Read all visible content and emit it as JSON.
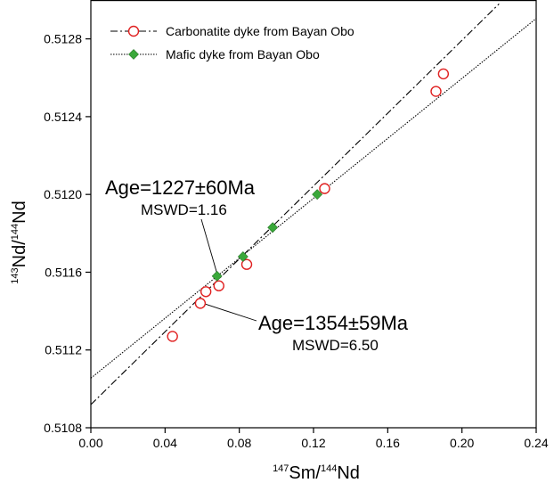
{
  "chart_data": {
    "type": "scatter",
    "xlabel": {
      "sup1": "147",
      "main1": "Sm/",
      "sup2": "144",
      "main2": "Nd"
    },
    "ylabel": {
      "sup1": "143",
      "main1": "Nd/",
      "sup2": "144",
      "main2": "Nd"
    },
    "xlim": [
      0.0,
      0.24
    ],
    "ylim": [
      0.5108,
      0.513
    ],
    "xticks": [
      0.0,
      0.04,
      0.08,
      0.12,
      0.16,
      0.2,
      0.24
    ],
    "xtick_labels": [
      "0.00",
      "0.04",
      "0.08",
      "0.12",
      "0.16",
      "0.20",
      "0.24"
    ],
    "yticks": [
      0.5108,
      0.5112,
      0.5116,
      0.512,
      0.5124,
      0.5128
    ],
    "ytick_labels": [
      "0.5108",
      "0.5112",
      "0.5116",
      "0.5120",
      "0.5124",
      "0.5128"
    ],
    "legend_position": "top-left",
    "series": [
      {
        "name": "Carbonatite dyke from Bayan Obo",
        "marker": "open-circle",
        "color": "#e02020",
        "line_style": "dash-dot",
        "x": [
          0.044,
          0.059,
          0.062,
          0.069,
          0.084,
          0.126,
          0.186,
          0.19
        ],
        "y": [
          0.51127,
          0.51144,
          0.5115,
          0.51153,
          0.51164,
          0.51203,
          0.51253,
          0.51262
        ],
        "fit": {
          "x": [
            0.0,
            0.22
          ],
          "y": [
            0.510919,
            0.51298
          ]
        }
      },
      {
        "name": "Mafic dyke from Bayan Obo",
        "marker": "filled-diamond",
        "color": "#3aa83a",
        "line_style": "dotted",
        "x": [
          0.068,
          0.082,
          0.098,
          0.122
        ],
        "y": [
          0.51158,
          0.51168,
          0.51183,
          0.512
        ],
        "fit": {
          "x": [
            0.0,
            0.24
          ],
          "y": [
            0.511055,
            0.512905
          ]
        }
      }
    ],
    "annotations": [
      {
        "age": "Age=1227±60Ma",
        "mswd": "MSWD=1.16",
        "points_to": {
          "x": 0.068,
          "y": 0.51158
        }
      },
      {
        "age": "Age=1354±59Ma",
        "mswd": "MSWD=6.50",
        "points_to": {
          "x": 0.059,
          "y": 0.51144
        }
      }
    ]
  }
}
